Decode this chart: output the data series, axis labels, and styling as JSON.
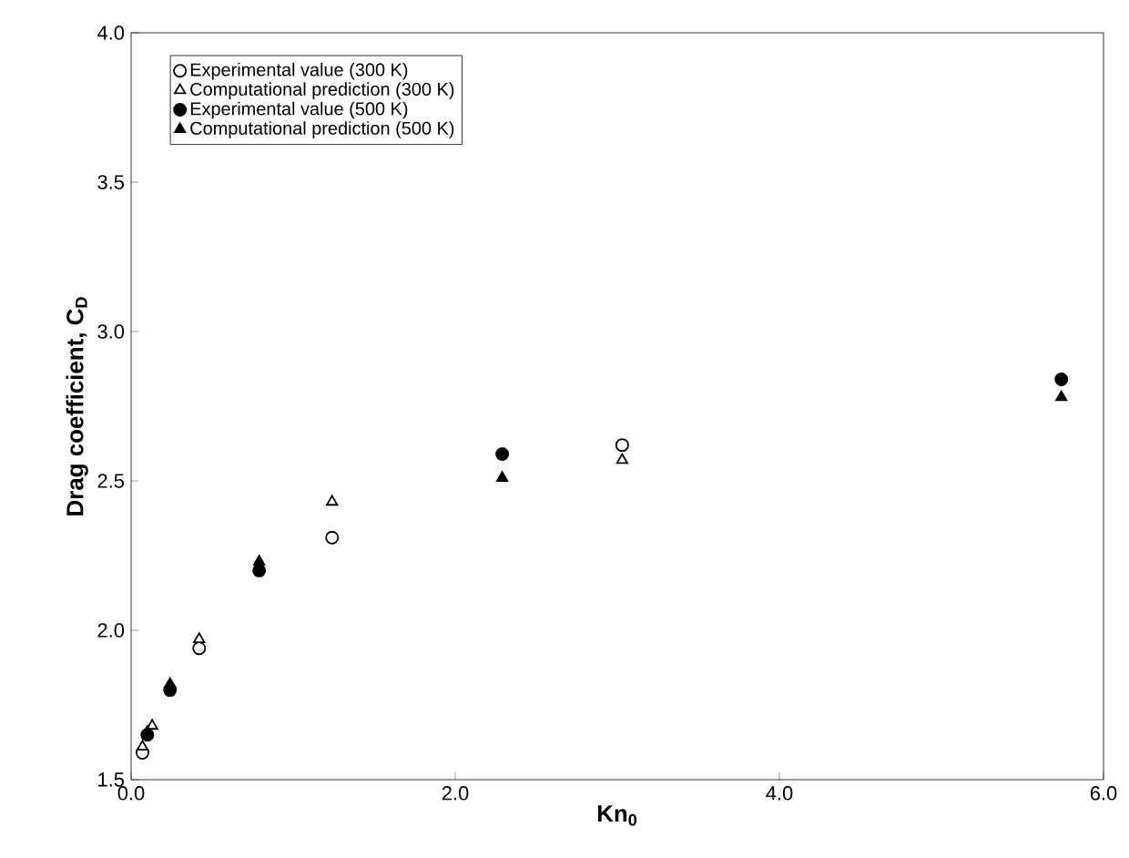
{
  "chart_data": {
    "type": "scatter",
    "xlabel": "**Kn$_{0}$**",
    "ylabel": "**Drag coefficient, C$_{D}$**",
    "xlim": [
      0,
      6
    ],
    "ylim": [
      1.5,
      4.0
    ],
    "xticks": [
      {
        "value": 0,
        "label": "0.0"
      },
      {
        "value": 2,
        "label": "2.0"
      },
      {
        "value": 4,
        "label": "4.0"
      },
      {
        "value": 6,
        "label": "6.0"
      }
    ],
    "yticks": [
      1.5,
      {
        "value": 2,
        "label": "2.0"
      },
      2.5,
      {
        "value": 3,
        "label": "3.0"
      },
      3.5,
      {
        "value": 4,
        "label": "4.0"
      }
    ],
    "legend": "top left",
    "grid": false,
    "series": [
      {
        "name": "Experimental value (300 K)",
        "color": "#000000",
        "marker": "circle",
        "x": [
          0.07,
          0.42,
          1.24,
          3.03
        ],
        "values": [
          1.59,
          1.94,
          2.31,
          2.62
        ]
      },
      {
        "name": "Computational prediction (300 K)",
        "color": "#000000",
        "marker": "triangle",
        "x": [
          0.07,
          0.13,
          0.42,
          1.24,
          3.03
        ],
        "values": [
          1.61,
          1.68,
          1.97,
          2.43,
          2.57
        ]
      },
      {
        "name": "Experimental value (500 K)",
        "color": "#000000",
        "marker": "circle",
        "x": [
          0.1,
          0.24,
          0.79,
          2.29,
          5.74
        ],
        "values": [
          1.65,
          1.8,
          2.2,
          2.59,
          2.84
        ]
      },
      {
        "name": "Computational prediction (500 K)",
        "color": "#000000",
        "marker": "triangle",
        "x": [
          0.1,
          0.24,
          0.79,
          2.29,
          5.74
        ],
        "values": [
          1.66,
          1.82,
          2.23,
          2.51,
          2.78
        ]
      }
    ]
  }
}
